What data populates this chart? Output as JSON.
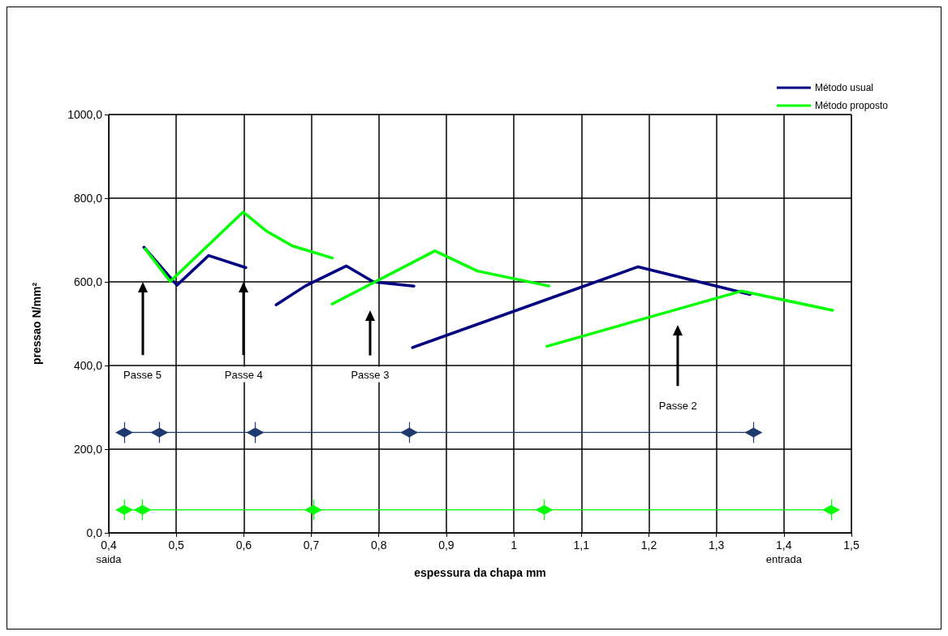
{
  "chart_data": {
    "type": "line",
    "xlabel": "espessura da chapa mm",
    "ylabel": "pressao N/mm²",
    "xlim": [
      0.4,
      1.5
    ],
    "xticks": [
      {
        "value": 0.4,
        "label": "0,4"
      },
      {
        "value": 0.5,
        "label": "0,5"
      },
      {
        "value": 0.6,
        "label": "0,6"
      },
      {
        "value": 0.7,
        "label": "0,7"
      },
      {
        "value": 0.8,
        "label": "0,8"
      },
      {
        "value": 0.9,
        "label": "0,9"
      },
      1,
      {
        "value": 1.1,
        "label": "1,1"
      },
      {
        "value": 1.2,
        "label": "1,2"
      },
      {
        "value": 1.3,
        "label": "1,3"
      },
      {
        "value": 1.4,
        "label": "1,4"
      },
      {
        "value": 1.5,
        "label": "1,5"
      }
    ],
    "ylim": [
      0,
      1000
    ],
    "yticks": [
      {
        "value": 0,
        "label": "0,0"
      },
      {
        "value": 200,
        "label": "200,0"
      },
      {
        "value": 400,
        "label": "400,0"
      },
      {
        "value": 600,
        "label": "600,0"
      },
      {
        "value": 800,
        "label": "800,0"
      },
      {
        "value": 1000,
        "label": "1000,0"
      }
    ],
    "grid": true,
    "legend": "top right",
    "series": [
      {
        "name": "Método usual",
        "color": "#000080",
        "x": [
          0.452,
          0.501,
          0.548,
          0.603,
          null,
          0.648,
          0.691,
          0.752,
          0.792,
          0.852,
          null,
          0.85,
          1.094,
          1.184,
          1.35
        ],
        "values": [
          683,
          592,
          663,
          634,
          null,
          545,
          590,
          638,
          600,
          590,
          null,
          443,
          584,
          636,
          570
        ]
      },
      {
        "name": "Método proposto",
        "color": "#00ff00",
        "x": [
          0.454,
          0.491,
          0.599,
          0.633,
          0.672,
          0.731,
          null,
          0.731,
          0.883,
          0.946,
          1.052,
          null,
          1.049,
          1.337,
          1.472
        ],
        "values": [
          679,
          601,
          767,
          722,
          686,
          657,
          null,
          547,
          674,
          626,
          590,
          null,
          446,
          578,
          532
        ]
      },
      {
        "color": "#1f3a6e",
        "marker": "diamond",
        "x": [
          0.423,
          0.475,
          0.617,
          0.845,
          1.355
        ],
        "values": [
          240,
          240,
          240,
          240,
          240
        ],
        "errors": [
          25,
          25,
          25,
          25,
          25
        ]
      },
      {
        "color": "#00ff00",
        "marker": "diamond",
        "x": [
          0.423,
          0.45,
          0.703,
          1.045,
          1.47
        ],
        "values": [
          55,
          55,
          55,
          55,
          55
        ],
        "errors": [
          25,
          25,
          25,
          25,
          25
        ]
      }
    ],
    "annotations": [
      "Passe 5",
      "Passe 4",
      "Passe 3",
      "Passe 2",
      "saida",
      "entrada"
    ]
  }
}
